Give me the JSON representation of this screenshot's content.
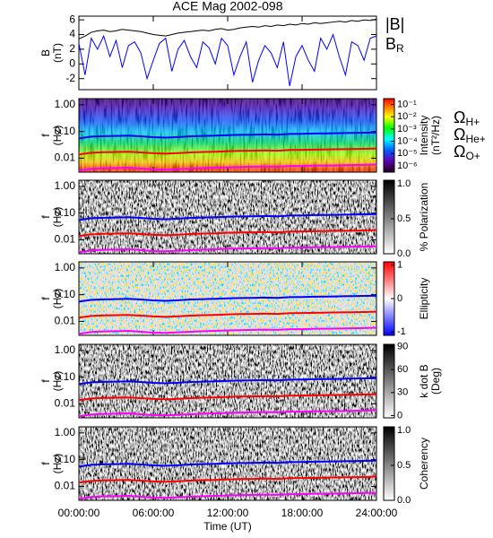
{
  "chart_data": [
    {
      "type": "line",
      "title": "ACE Mag 2002-098",
      "ylabel": [
        "B",
        "(nT)"
      ],
      "xlim": [
        0,
        24
      ],
      "xticks": [
        0,
        6,
        12,
        18,
        24
      ],
      "ylim": [
        -3.5,
        6.5
      ],
      "yticks": [
        -2,
        0,
        2,
        4,
        6
      ],
      "legend": "right",
      "x": [
        0,
        0.5,
        1,
        1.5,
        2,
        2.5,
        3,
        3.5,
        4,
        4.5,
        5,
        5.5,
        6,
        6.5,
        7,
        7.5,
        8,
        8.5,
        9,
        9.5,
        10,
        10.5,
        11,
        11.5,
        12,
        12.5,
        13,
        13.5,
        14,
        14.5,
        15,
        15.5,
        16,
        16.5,
        17,
        17.5,
        18,
        18.5,
        19,
        19.5,
        20,
        20.5,
        21,
        21.5,
        22,
        22.5,
        23,
        23.5,
        24
      ],
      "series": [
        {
          "name": "|B|",
          "color": "#000000",
          "values": [
            3.4,
            3.8,
            4.3,
            4.5,
            4.6,
            4.4,
            4.5,
            4.7,
            4.6,
            4.5,
            4.4,
            4.2,
            4.0,
            3.9,
            3.8,
            4.0,
            4.2,
            4.3,
            4.4,
            4.5,
            4.6,
            4.5,
            4.7,
            4.8,
            4.6,
            4.7,
            4.9,
            5.0,
            5.1,
            5.0,
            5.2,
            5.1,
            5.3,
            5.2,
            5.4,
            5.3,
            5.5,
            5.4,
            5.6,
            5.5,
            5.6,
            5.7,
            5.8,
            5.7,
            5.9,
            5.8,
            6.0,
            5.9,
            6.1
          ]
        },
        {
          "name": "B",
          "subscript": "R",
          "color": "#0000ff",
          "values": [
            2.8,
            -1.5,
            3.5,
            2.0,
            3.8,
            1.0,
            3.2,
            -0.5,
            2.5,
            3.0,
            1.5,
            -2.0,
            0.5,
            2.8,
            3.5,
            -1.0,
            2.0,
            3.2,
            1.0,
            -0.5,
            3.0,
            2.2,
            0.0,
            3.5,
            2.5,
            -1.5,
            1.0,
            3.0,
            -2.5,
            0.5,
            2.5,
            1.5,
            -0.5,
            3.0,
            -3.0,
            1.0,
            2.5,
            0.5,
            -1.0,
            3.5,
            2.0,
            4.0,
            1.0,
            -1.5,
            3.0,
            2.5,
            0.5,
            3.5,
            3.8
          ]
        }
      ]
    },
    {
      "type": "spectrogram",
      "ylabel": [
        "f",
        "(Hz)"
      ],
      "xlim": [
        0,
        24
      ],
      "xticks": [
        0,
        6,
        12,
        18,
        24
      ],
      "ylim": [
        0.003,
        1.7
      ],
      "ylog": true,
      "yticks": [
        0.01,
        {
          "value": 0.1,
          "label": "0.10"
        },
        {
          "value": 1,
          "label": "1.00"
        }
      ],
      "legend": "right",
      "x": [
        0,
        1,
        2,
        3,
        4,
        5,
        6,
        7,
        8,
        9,
        10,
        11,
        12,
        13,
        14,
        15,
        16,
        17,
        18,
        19,
        20,
        21,
        22,
        23,
        24
      ],
      "series": [
        {
          "name": "Ω",
          "subscript": "H+",
          "color": "#0000ff",
          "values": [
            0.055,
            0.064,
            0.067,
            0.068,
            0.07,
            0.066,
            0.061,
            0.059,
            0.062,
            0.066,
            0.068,
            0.07,
            0.073,
            0.075,
            0.076,
            0.078,
            0.076,
            0.081,
            0.082,
            0.084,
            0.085,
            0.087,
            0.088,
            0.09,
            0.092
          ]
        },
        {
          "name": "Ω",
          "subscript": "He+",
          "color": "#ff0000",
          "values": [
            0.0138,
            0.016,
            0.0168,
            0.017,
            0.0175,
            0.0165,
            0.0153,
            0.0148,
            0.0155,
            0.0165,
            0.017,
            0.0175,
            0.0183,
            0.0188,
            0.019,
            0.0195,
            0.019,
            0.0203,
            0.0205,
            0.021,
            0.0213,
            0.0218,
            0.022,
            0.0225,
            0.023
          ]
        },
        {
          "name": "Ω",
          "subscript": "O+",
          "color": "#ff00ff",
          "values": [
            0.0034,
            0.004,
            0.0042,
            0.0043,
            0.0044,
            0.0041,
            0.0038,
            0.0037,
            0.0039,
            0.0041,
            0.0043,
            0.0044,
            0.0046,
            0.0047,
            0.0048,
            0.0049,
            0.0048,
            0.0051,
            0.0051,
            0.0053,
            0.0053,
            0.0054,
            0.0055,
            0.0056,
            0.0058
          ]
        }
      ],
      "colorbar": {
        "colormap": "rainbow",
        "log": true,
        "label": [
          "Intensity",
          "(nT²/Hz)"
        ],
        "lim": [
          3e-07,
          0.3
        ],
        "ticks": [
          {
            "value": 0.1,
            "label": "10⁻¹"
          },
          {
            "value": 0.01,
            "label": "10⁻²"
          },
          {
            "value": 0.001,
            "label": "10⁻³"
          },
          {
            "value": 0.0001,
            "label": "10⁻⁴"
          },
          {
            "value": 1e-05,
            "label": "10⁻⁵"
          },
          {
            "value": 1e-06,
            "label": "10⁻⁶"
          }
        ]
      }
    },
    {
      "type": "spectrogram",
      "ylabel": [
        "f",
        "(Hz)"
      ],
      "xlim": [
        0,
        24
      ],
      "xticks": [
        0,
        6,
        12,
        18,
        24
      ],
      "ylim": [
        0.003,
        1.7
      ],
      "ylog": true,
      "yticks": [
        0.01,
        {
          "value": 0.1,
          "label": "0.10"
        },
        {
          "value": 1,
          "label": "1.00"
        }
      ],
      "x": [
        0,
        1,
        2,
        3,
        4,
        5,
        6,
        7,
        8,
        9,
        10,
        11,
        12,
        13,
        14,
        15,
        16,
        17,
        18,
        19,
        20,
        21,
        22,
        23,
        24
      ],
      "series": [
        {
          "color": "#0000ff",
          "values": [
            0.055,
            0.064,
            0.067,
            0.068,
            0.07,
            0.066,
            0.061,
            0.059,
            0.062,
            0.066,
            0.068,
            0.07,
            0.073,
            0.075,
            0.076,
            0.078,
            0.076,
            0.081,
            0.082,
            0.084,
            0.085,
            0.087,
            0.088,
            0.09,
            0.092
          ]
        },
        {
          "color": "#ff0000",
          "values": [
            0.0138,
            0.016,
            0.0168,
            0.017,
            0.0175,
            0.0165,
            0.0153,
            0.0148,
            0.0155,
            0.0165,
            0.017,
            0.0175,
            0.0183,
            0.0188,
            0.019,
            0.0195,
            0.019,
            0.0203,
            0.0205,
            0.021,
            0.0213,
            0.0218,
            0.022,
            0.0225,
            0.023
          ]
        },
        {
          "color": "#ff00ff",
          "values": [
            0.0034,
            0.004,
            0.0042,
            0.0043,
            0.0044,
            0.0041,
            0.0038,
            0.0037,
            0.0039,
            0.0041,
            0.0043,
            0.0044,
            0.0046,
            0.0047,
            0.0048,
            0.0049,
            0.0048,
            0.0051,
            0.0051,
            0.0053,
            0.0053,
            0.0054,
            0.0055,
            0.0056,
            0.0058
          ]
        }
      ],
      "colorbar": {
        "colormap": "gray",
        "label": [
          "% Polarization"
        ],
        "lim": [
          0,
          1.05
        ],
        "ticks": [
          {
            "value": 0,
            "label": "0.0"
          },
          0.5,
          {
            "value": 1,
            "label": "1.0"
          }
        ]
      }
    },
    {
      "type": "spectrogram",
      "ylabel": [
        "f",
        "(Hz)"
      ],
      "xlim": [
        0,
        24
      ],
      "xticks": [
        0,
        6,
        12,
        18,
        24
      ],
      "ylim": [
        0.003,
        1.7
      ],
      "ylog": true,
      "yticks": [
        0.01,
        {
          "value": 0.1,
          "label": "0.10"
        },
        {
          "value": 1,
          "label": "1.00"
        }
      ],
      "x": [
        0,
        1,
        2,
        3,
        4,
        5,
        6,
        7,
        8,
        9,
        10,
        11,
        12,
        13,
        14,
        15,
        16,
        17,
        18,
        19,
        20,
        21,
        22,
        23,
        24
      ],
      "series": [
        {
          "color": "#0000ff",
          "values": [
            0.055,
            0.064,
            0.067,
            0.068,
            0.07,
            0.066,
            0.061,
            0.059,
            0.062,
            0.066,
            0.068,
            0.07,
            0.073,
            0.075,
            0.076,
            0.078,
            0.076,
            0.081,
            0.082,
            0.084,
            0.085,
            0.087,
            0.088,
            0.09,
            0.092
          ]
        },
        {
          "color": "#ff0000",
          "values": [
            0.0138,
            0.016,
            0.0168,
            0.017,
            0.0175,
            0.0165,
            0.0153,
            0.0148,
            0.0155,
            0.0165,
            0.017,
            0.0175,
            0.0183,
            0.0188,
            0.019,
            0.0195,
            0.019,
            0.0203,
            0.0205,
            0.021,
            0.0213,
            0.0218,
            0.022,
            0.0225,
            0.023
          ]
        },
        {
          "color": "#ff00ff",
          "values": [
            0.0034,
            0.004,
            0.0042,
            0.0043,
            0.0044,
            0.0041,
            0.0038,
            0.0037,
            0.0039,
            0.0041,
            0.0043,
            0.0044,
            0.0046,
            0.0047,
            0.0048,
            0.0049,
            0.0048,
            0.0051,
            0.0051,
            0.0053,
            0.0053,
            0.0054,
            0.0055,
            0.0056,
            0.0058
          ]
        }
      ],
      "colorbar": {
        "colormap": "bluered",
        "label": [
          "Ellipticity"
        ],
        "lim": [
          -1.1,
          1.1
        ],
        "ticks": [
          1,
          0,
          -1
        ]
      }
    },
    {
      "type": "spectrogram",
      "ylabel": [
        "f",
        "(Hz)"
      ],
      "xlim": [
        0,
        24
      ],
      "xticks": [
        0,
        6,
        12,
        18,
        24
      ],
      "ylim": [
        0.003,
        1.7
      ],
      "ylog": true,
      "yticks": [
        0.01,
        {
          "value": 0.1,
          "label": "0.10"
        },
        {
          "value": 1,
          "label": "1.00"
        }
      ],
      "x": [
        0,
        1,
        2,
        3,
        4,
        5,
        6,
        7,
        8,
        9,
        10,
        11,
        12,
        13,
        14,
        15,
        16,
        17,
        18,
        19,
        20,
        21,
        22,
        23,
        24
      ],
      "series": [
        {
          "color": "#0000ff",
          "values": [
            0.055,
            0.064,
            0.067,
            0.068,
            0.07,
            0.066,
            0.061,
            0.059,
            0.062,
            0.066,
            0.068,
            0.07,
            0.073,
            0.075,
            0.076,
            0.078,
            0.076,
            0.081,
            0.082,
            0.084,
            0.085,
            0.087,
            0.088,
            0.09,
            0.092
          ]
        },
        {
          "color": "#ff0000",
          "values": [
            0.0138,
            0.016,
            0.0168,
            0.017,
            0.0175,
            0.0165,
            0.0153,
            0.0148,
            0.0155,
            0.0165,
            0.017,
            0.0175,
            0.0183,
            0.0188,
            0.019,
            0.0195,
            0.019,
            0.0203,
            0.0205,
            0.021,
            0.0213,
            0.0218,
            0.022,
            0.0225,
            0.023
          ]
        },
        {
          "color": "#ff00ff",
          "values": [
            0.0034,
            0.004,
            0.0042,
            0.0043,
            0.0044,
            0.0041,
            0.0038,
            0.0037,
            0.0039,
            0.0041,
            0.0043,
            0.0044,
            0.0046,
            0.0047,
            0.0048,
            0.0049,
            0.0048,
            0.0051,
            0.0051,
            0.0053,
            0.0053,
            0.0054,
            0.0055,
            0.0056,
            0.0058
          ]
        }
      ],
      "colorbar": {
        "colormap": "gray",
        "label": [
          "k dot B",
          "(Deg)"
        ],
        "lim": [
          -3,
          93
        ],
        "ticks": [
          90,
          60,
          30,
          0
        ]
      }
    },
    {
      "type": "spectrogram",
      "ylabel": [
        "f",
        "(Hz)"
      ],
      "xlabel": "Time (UT)",
      "xlim": [
        0,
        24
      ],
      "xticks": [
        {
          "value": 0,
          "label": "00:00:00"
        },
        {
          "value": 6,
          "label": "06:00:00"
        },
        {
          "value": 12,
          "label": "12:00:00"
        },
        {
          "value": 18,
          "label": "18:00:00"
        },
        {
          "value": 24,
          "label": "24:00:00"
        }
      ],
      "ylim": [
        0.003,
        1.7
      ],
      "ylog": true,
      "yticks": [
        0.01,
        {
          "value": 0.1,
          "label": "0.10"
        },
        {
          "value": 1,
          "label": "1.00"
        }
      ],
      "x": [
        0,
        1,
        2,
        3,
        4,
        5,
        6,
        7,
        8,
        9,
        10,
        11,
        12,
        13,
        14,
        15,
        16,
        17,
        18,
        19,
        20,
        21,
        22,
        23,
        24
      ],
      "series": [
        {
          "color": "#0000ff",
          "values": [
            0.055,
            0.064,
            0.067,
            0.068,
            0.07,
            0.066,
            0.061,
            0.059,
            0.062,
            0.066,
            0.068,
            0.07,
            0.073,
            0.075,
            0.076,
            0.078,
            0.076,
            0.081,
            0.082,
            0.084,
            0.085,
            0.087,
            0.088,
            0.09,
            0.092
          ]
        },
        {
          "color": "#ff0000",
          "values": [
            0.0138,
            0.016,
            0.0168,
            0.017,
            0.0175,
            0.0165,
            0.0153,
            0.0148,
            0.0155,
            0.0165,
            0.017,
            0.0175,
            0.0183,
            0.0188,
            0.019,
            0.0195,
            0.019,
            0.0203,
            0.0205,
            0.021,
            0.0213,
            0.0218,
            0.022,
            0.0225,
            0.023
          ]
        },
        {
          "color": "#ff00ff",
          "values": [
            0.0034,
            0.004,
            0.0042,
            0.0043,
            0.0044,
            0.0041,
            0.0038,
            0.0037,
            0.0039,
            0.0041,
            0.0043,
            0.0044,
            0.0046,
            0.0047,
            0.0048,
            0.0049,
            0.0048,
            0.0051,
            0.0051,
            0.0053,
            0.0053,
            0.0054,
            0.0055,
            0.0056,
            0.0058
          ]
        }
      ],
      "colorbar": {
        "colormap": "gray",
        "label": [
          "Coherency"
        ],
        "lim": [
          0,
          1.05
        ],
        "ticks": [
          {
            "value": 1,
            "label": "1.0"
          },
          0.5,
          {
            "value": 0,
            "label": "0.0"
          }
        ]
      }
    }
  ]
}
